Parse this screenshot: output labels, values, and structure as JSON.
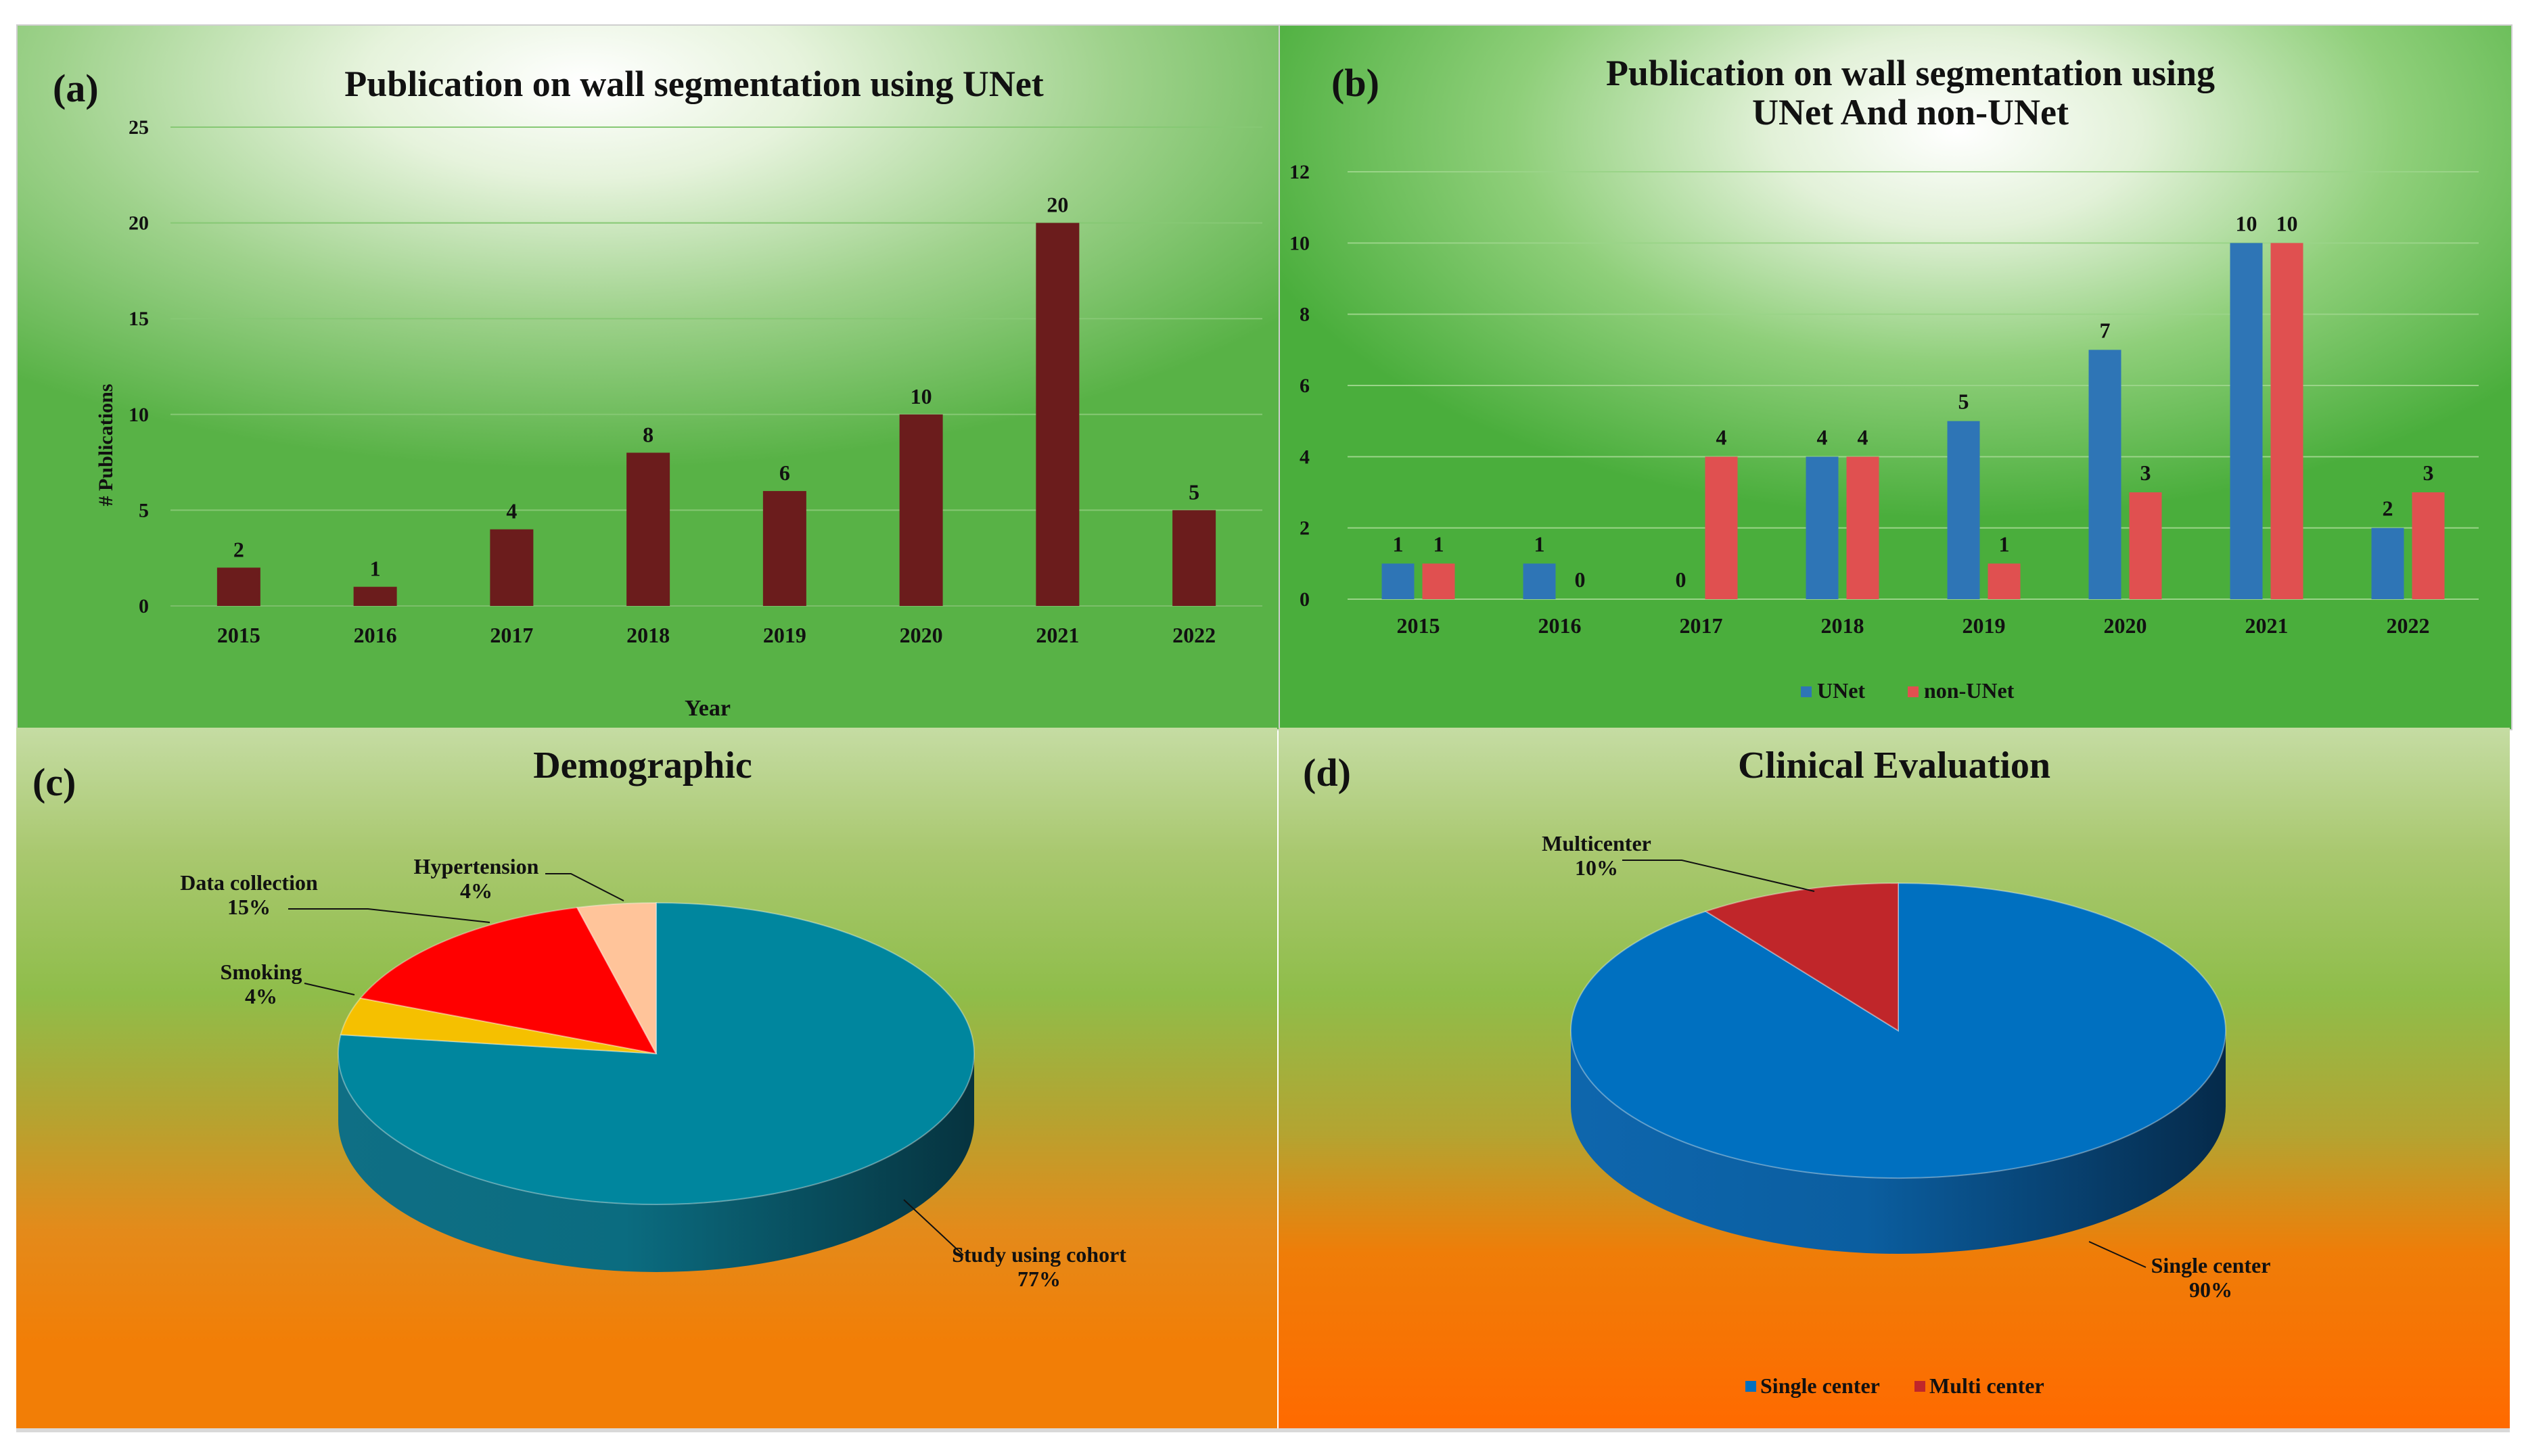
{
  "charts": [
    {
      "panel_label": "(a)",
      "chart_data": {
        "type": "bar",
        "title": "Publication  on wall segmentation using UNet",
        "xlabel": "Year",
        "ylabel": "# Publications",
        "categories": [
          "2015",
          "2016",
          "2017",
          "2018",
          "2019",
          "2020",
          "2021",
          "2022"
        ],
        "values": [
          2,
          1,
          4,
          8,
          6,
          10,
          20,
          5
        ],
        "ylim": [
          0,
          25
        ],
        "yticks": [
          0,
          5,
          10,
          15,
          20,
          25
        ],
        "grid": true,
        "color": "#6b1c1c"
      }
    },
    {
      "panel_label": "(b)",
      "chart_data": {
        "type": "bar",
        "title_lines": [
          "Publication  on wall segmentation using",
          "UNet And non-UNet"
        ],
        "categories": [
          "2015",
          "2016",
          "2017",
          "2018",
          "2019",
          "2020",
          "2021",
          "2022"
        ],
        "series": [
          {
            "name": "UNet",
            "values": [
              1,
              1,
              0,
              4,
              5,
              7,
              10,
              2
            ],
            "color": "#2e75b6"
          },
          {
            "name": "non-UNet",
            "values": [
              1,
              0,
              4,
              4,
              1,
              3,
              10,
              3
            ],
            "color": "#e05050"
          }
        ],
        "ylim": [
          0,
          12
        ],
        "yticks": [
          0,
          2,
          4,
          6,
          8,
          10,
          12
        ],
        "grid": true,
        "legend_position": "bottom"
      }
    },
    {
      "panel_label": "(c)",
      "chart_data": {
        "type": "pie",
        "title": "Demographic",
        "slices": [
          {
            "label": "Study using cohort",
            "value": 77,
            "pct_label": "77%",
            "color": "#00869e"
          },
          {
            "label": "Smoking",
            "value": 4,
            "pct_label": "4%",
            "color": "#f5c000"
          },
          {
            "label": "Data collection",
            "value": 15,
            "pct_label": "15%",
            "color": "#ff0000"
          },
          {
            "label": "Hypertension",
            "value": 4,
            "pct_label": "4%",
            "color": "#ffc49a"
          }
        ]
      }
    },
    {
      "panel_label": "(d)",
      "chart_data": {
        "type": "pie",
        "title": "Clinical  Evaluation",
        "slices": [
          {
            "label": "Single center",
            "value": 90,
            "pct_label": "90%",
            "color": "#0070c0"
          },
          {
            "label": "Multicenter",
            "value": 10,
            "pct_label": "10%",
            "color": "#c0262a"
          }
        ],
        "legend": [
          {
            "label": "Single center",
            "color": "#0070c0"
          },
          {
            "label": "Multi center",
            "color": "#c0262a"
          }
        ],
        "legend_position": "bottom"
      }
    }
  ]
}
